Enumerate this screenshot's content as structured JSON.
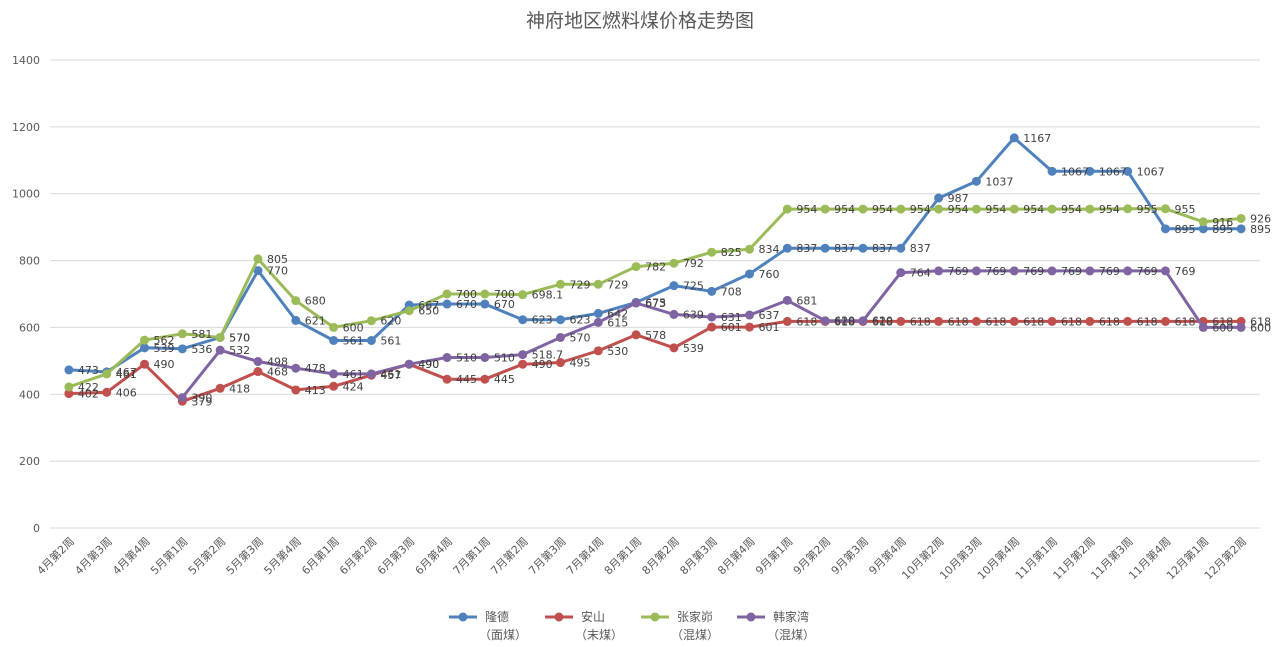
{
  "chart_data": {
    "type": "line",
    "title": "神府地区燃料煤价格走势图",
    "xlabel": "",
    "ylabel": "",
    "ylim": [
      0,
      1400
    ],
    "yticks": [
      0,
      200,
      400,
      600,
      800,
      1000,
      1200,
      1400
    ],
    "grid": true,
    "legend_position": "bottom",
    "categories": [
      "4月第2周",
      "4月第3周",
      "4月第4周",
      "5月第1周",
      "5月第2周",
      "5月第3周",
      "5月第4周",
      "6月第1周",
      "6月第2周",
      "6月第3周",
      "6月第4周",
      "7月第1周",
      "7月第2周",
      "7月第3周",
      "7月第4周",
      "8月第1周",
      "8月第2周",
      "8月第3周",
      "8月第4周",
      "9月第1周",
      "9月第2周",
      "9月第3周",
      "9月第4周",
      "10月第2周",
      "10月第3周",
      "10月第4周",
      "11月第1周",
      "11月第2周",
      "11月第3周",
      "11月第4周",
      "12月第1周",
      "12月第2周"
    ],
    "series": [
      {
        "name": "隆德",
        "name_sub": "（面煤）",
        "color": "#4f81bd",
        "values": [
          473,
          467,
          539,
          536,
          570,
          770,
          621,
          561,
          561,
          667,
          670,
          670,
          623,
          623,
          642,
          675,
          725,
          708,
          760,
          837,
          837,
          837,
          837,
          987,
          1037,
          1167,
          1067,
          1067,
          1067,
          895,
          895,
          895
        ]
      },
      {
        "name": "安山",
        "name_sub": "（末煤）",
        "color": "#c0504d",
        "values": [
          402,
          406,
          490,
          379,
          418,
          468,
          413,
          424,
          457,
          490,
          445,
          445,
          490,
          495,
          530,
          578,
          539,
          601,
          601,
          618,
          618,
          618,
          618,
          618,
          618,
          618,
          618,
          618,
          618,
          618,
          618,
          618
        ]
      },
      {
        "name": "张家峁",
        "name_sub": "（混煤）",
        "color": "#9bbb59",
        "values": [
          422,
          461,
          562,
          581,
          570,
          805,
          680,
          600,
          620,
          650,
          700,
          700,
          698.1,
          729,
          729,
          782,
          792,
          825,
          834,
          954,
          954,
          954,
          954,
          954,
          954,
          954,
          954,
          954,
          955,
          955,
          916,
          926
        ]
      },
      {
        "name": "韩家湾",
        "name_sub": "（混煤）",
        "color": "#8064a2",
        "values": [
          null,
          null,
          null,
          390,
          532,
          498,
          478,
          461,
          461,
          490,
          510,
          510,
          518.7,
          570,
          615,
          673,
          639,
          631,
          637,
          681,
          620,
          620,
          764,
          769,
          769,
          769,
          769,
          769,
          769,
          769,
          600,
          600
        ]
      }
    ]
  }
}
